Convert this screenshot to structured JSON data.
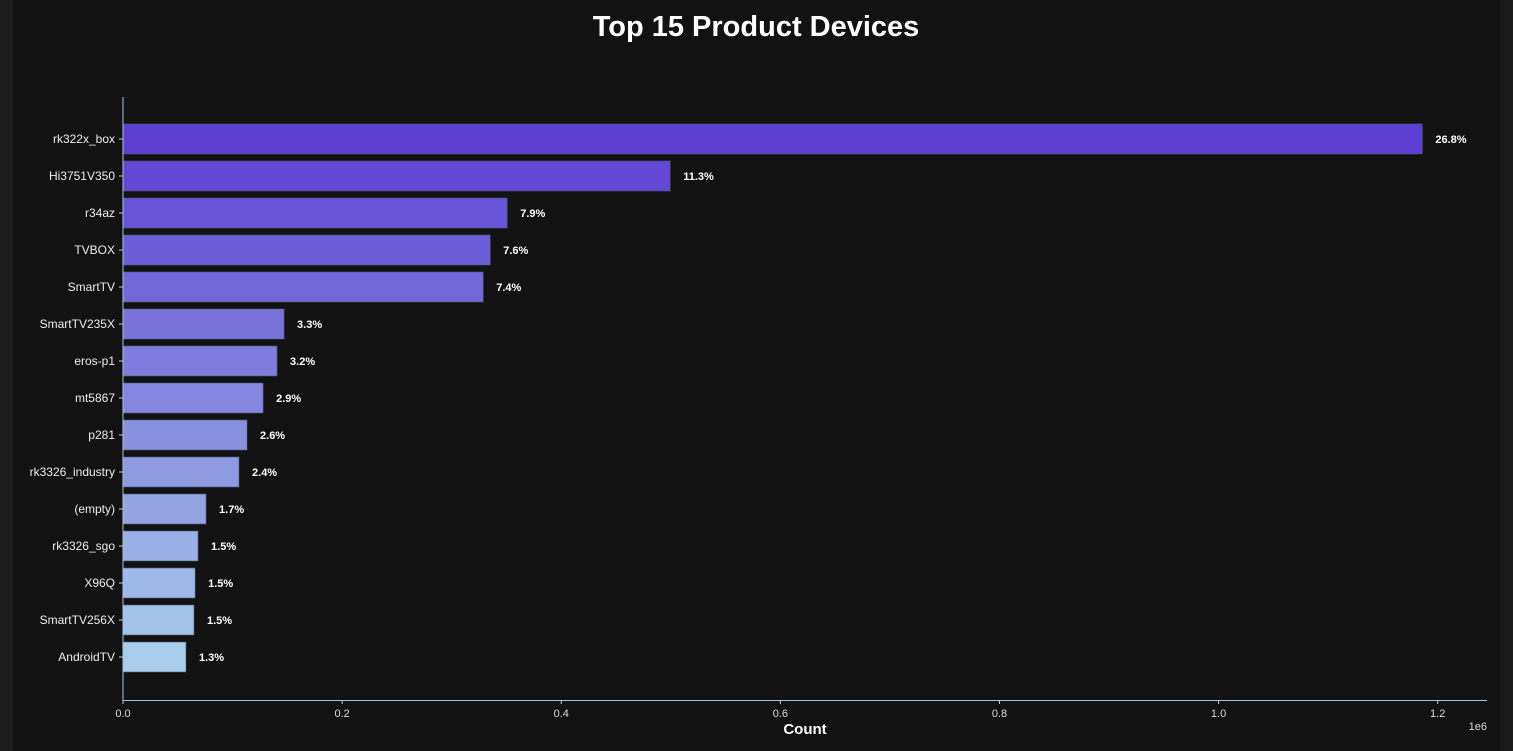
{
  "chart_data": {
    "type": "bar",
    "orientation": "horizontal",
    "title": "Top 15 Product Devices",
    "xlabel": "Count",
    "ylabel": "",
    "x_offset_label": "1e6",
    "xlim": [
      0,
      1245000
    ],
    "x_ticks": [
      0,
      200000,
      400000,
      600000,
      800000,
      1000000,
      1200000
    ],
    "x_tick_labels": [
      "0.0",
      "0.2",
      "0.4",
      "0.6",
      "0.8",
      "1.0",
      "1.2"
    ],
    "grid": false,
    "categories": [
      "rk322x_box",
      "Hi3751V350",
      "r34az",
      "TVBOX",
      "SmartTV",
      "SmartTV235X",
      "eros-p1",
      "mt5867",
      "p281",
      "rk3326_industry",
      "(empty)",
      "rk3326_sgo",
      "X96Q",
      "SmartTV256X",
      "AndroidTV"
    ],
    "values": [
      1186000,
      499500,
      350700,
      335200,
      328800,
      147000,
      140600,
      127900,
      113200,
      105900,
      75800,
      68500,
      65800,
      64800,
      57500
    ],
    "data_labels": [
      "26.8%",
      "11.3%",
      "7.9%",
      "7.6%",
      "7.4%",
      "3.3%",
      "3.2%",
      "2.9%",
      "2.6%",
      "2.4%",
      "1.7%",
      "1.5%",
      "1.5%",
      "1.5%",
      "1.3%"
    ],
    "colors": {
      "gradient_start": "#5e3fd3",
      "gradient_end": "#a9cdea",
      "background": "#121212",
      "axis": "#a9c4df",
      "text": "#ffffff"
    }
  }
}
